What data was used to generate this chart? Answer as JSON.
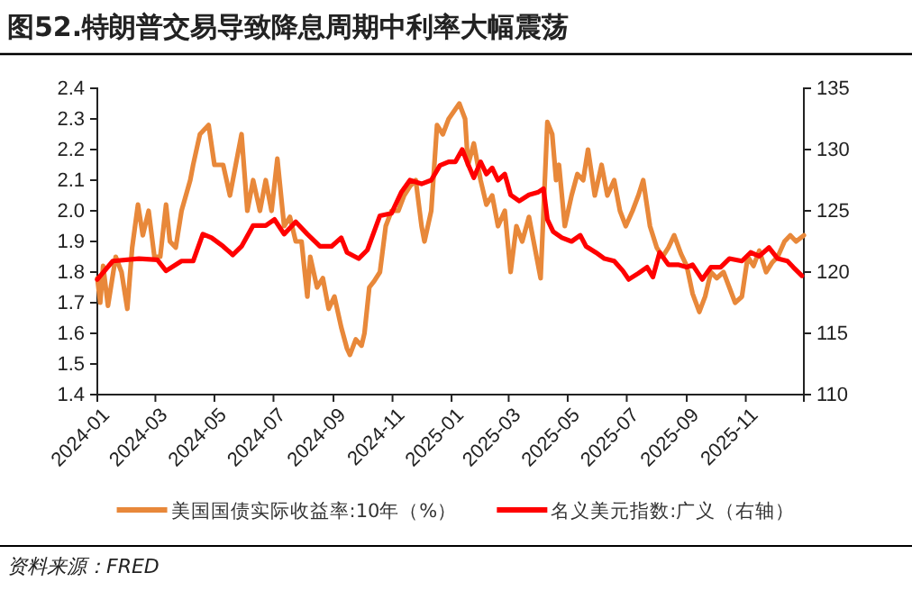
{
  "chart_data": {
    "type": "line",
    "title": "图52.特朗普交易导致降息周期中利率大幅震荡",
    "annotations": [
      "资料来源：FRED"
    ],
    "xlim": [
      "2024-01-01",
      "2025-12-31"
    ],
    "xticks": [
      "2024-01",
      "2024-03",
      "2024-05",
      "2024-07",
      "2024-09",
      "2024-11",
      "2025-01",
      "2025-03",
      "2025-05",
      "2025-07",
      "2025-09",
      "2025-11"
    ],
    "ylim": [
      1.4,
      2.4
    ],
    "yticks": [
      1.4,
      1.5,
      1.6,
      1.7,
      1.8,
      1.9,
      {
        "value": 2,
        "label": "2.0"
      },
      2.1,
      2.2,
      2.3,
      2.4
    ],
    "y2lim": [
      110,
      135
    ],
    "y2ticks": [
      110,
      115,
      120,
      125,
      130,
      135
    ],
    "grid": false,
    "legend": "bottom",
    "marker": "none",
    "line_style": "solid",
    "series": [
      {
        "name": "美国国债实际收益率:10年（%）",
        "color": "#e8883a",
        "x": [
          "2024-01-01",
          "2024-01-04",
          "2024-01-07",
          "2024-01-12",
          "2024-01-20",
          "2024-01-26",
          "2024-02-01",
          "2024-02-06",
          "2024-02-12",
          "2024-02-17",
          "2024-02-23",
          "2024-02-29",
          "2024-03-06",
          "2024-03-12",
          "2024-03-16",
          "2024-03-22",
          "2024-03-28",
          "2024-04-06",
          "2024-04-09",
          "2024-04-16",
          "2024-04-25",
          "2024-05-01",
          "2024-05-10",
          "2024-05-17",
          "2024-05-23",
          "2024-05-29",
          "2024-06-04",
          "2024-06-10",
          "2024-06-17",
          "2024-06-23",
          "2024-06-29",
          "2024-07-05",
          "2024-07-12",
          "2024-07-18",
          "2024-07-24",
          "2024-07-30",
          "2024-08-05",
          "2024-08-08",
          "2024-08-15",
          "2024-08-21",
          "2024-08-27",
          "2024-09-02",
          "2024-09-09",
          "2024-09-15",
          "2024-09-18",
          "2024-09-24",
          "2024-09-30",
          "2024-10-03",
          "2024-10-08",
          "2024-10-13",
          "2024-10-19",
          "2024-10-25",
          "2024-10-31",
          "2024-11-07",
          "2024-11-13",
          "2024-11-19",
          "2024-11-25",
          "2024-12-01",
          "2024-12-04",
          "2024-12-11",
          "2024-12-17",
          "2024-12-23",
          "2024-12-29",
          "2025-01-09",
          "2025-01-15",
          "2025-01-18",
          "2025-01-24",
          "2025-01-31",
          "2025-02-06",
          "2025-02-12",
          "2025-02-18",
          "2025-02-25",
          "2025-03-03",
          "2025-03-09",
          "2025-03-15",
          "2025-03-22",
          "2025-03-28",
          "2025-04-03",
          "2025-04-10",
          "2025-04-15",
          "2025-04-19",
          "2025-04-22",
          "2025-04-28",
          "2025-05-05",
          "2025-05-11",
          "2025-05-17",
          "2025-05-22",
          "2025-05-29",
          "2025-06-05",
          "2025-06-11",
          "2025-06-18",
          "2025-06-24",
          "2025-06-30",
          "2025-07-07",
          "2025-07-13",
          "2025-07-18",
          "2025-07-25",
          "2025-08-01",
          "2025-08-07",
          "2025-08-13",
          "2025-08-19",
          "2025-08-26",
          "2025-09-01",
          "2025-09-07",
          "2025-09-14",
          "2025-09-20",
          "2025-09-26",
          "2025-10-02",
          "2025-10-09",
          "2025-10-15",
          "2025-10-21",
          "2025-10-28",
          "2025-11-03",
          "2025-11-09",
          "2025-11-15",
          "2025-11-22",
          "2025-11-28",
          "2025-12-04",
          "2025-12-11",
          "2025-12-17",
          "2025-12-23",
          "2025-12-31"
        ],
        "values": [
          1.78,
          1.7,
          1.82,
          1.69,
          1.85,
          1.8,
          1.68,
          1.88,
          2.02,
          1.92,
          2.0,
          1.85,
          1.85,
          2.02,
          1.9,
          1.88,
          2.0,
          2.1,
          2.15,
          2.25,
          2.28,
          2.15,
          2.15,
          2.05,
          2.15,
          2.25,
          2.0,
          2.1,
          2.0,
          2.1,
          2.0,
          2.17,
          1.95,
          1.98,
          1.9,
          1.9,
          1.72,
          1.85,
          1.75,
          1.78,
          1.68,
          1.72,
          1.62,
          1.55,
          1.53,
          1.58,
          1.56,
          1.6,
          1.75,
          1.77,
          1.8,
          1.95,
          2.0,
          2.0,
          2.05,
          2.08,
          2.1,
          1.95,
          1.9,
          2.0,
          2.28,
          2.25,
          2.3,
          2.35,
          2.3,
          2.15,
          2.22,
          2.1,
          2.02,
          2.05,
          1.95,
          2.0,
          1.8,
          1.95,
          1.9,
          1.98,
          1.88,
          1.78,
          2.29,
          2.25,
          2.1,
          2.15,
          1.95,
          2.05,
          2.12,
          2.1,
          2.2,
          2.05,
          2.15,
          2.05,
          2.1,
          2.0,
          1.95,
          2.0,
          2.05,
          2.1,
          1.95,
          1.88,
          1.85,
          1.88,
          1.92,
          1.86,
          1.82,
          1.73,
          1.67,
          1.72,
          1.8,
          1.78,
          1.8,
          1.75,
          1.7,
          1.72,
          1.85,
          1.82,
          1.87,
          1.8,
          1.83,
          1.85,
          1.9,
          1.92,
          1.9,
          1.92
        ]
      },
      {
        "name": "名义美元指数:广义（右轴）",
        "color": "#ff0000",
        "axis": "y2",
        "x": [
          "2024-01-01",
          "2024-01-17",
          "2024-02-13",
          "2024-03-03",
          "2024-03-12",
          "2024-03-28",
          "2024-04-09",
          "2024-04-19",
          "2024-04-28",
          "2024-05-10",
          "2024-05-20",
          "2024-05-29",
          "2024-06-10",
          "2024-06-23",
          "2024-07-02",
          "2024-07-12",
          "2024-07-24",
          "2024-08-05",
          "2024-08-18",
          "2024-08-30",
          "2024-09-09",
          "2024-09-15",
          "2024-09-27",
          "2024-10-06",
          "2024-10-19",
          "2024-10-31",
          "2024-11-10",
          "2024-11-19",
          "2024-12-01",
          "2024-12-11",
          "2024-12-20",
          "2024-12-29",
          "2025-01-05",
          "2025-01-12",
          "2025-01-18",
          "2025-01-24",
          "2025-01-31",
          "2025-02-06",
          "2025-02-12",
          "2025-02-18",
          "2025-02-25",
          "2025-03-03",
          "2025-03-12",
          "2025-03-22",
          "2025-03-31",
          "2025-04-06",
          "2025-04-10",
          "2025-04-16",
          "2025-04-25",
          "2025-05-05",
          "2025-05-14",
          "2025-05-20",
          "2025-05-30",
          "2025-06-08",
          "2025-06-18",
          "2025-06-27",
          "2025-07-03",
          "2025-07-13",
          "2025-07-22",
          "2025-07-28",
          "2025-08-04",
          "2025-08-13",
          "2025-08-23",
          "2025-09-01",
          "2025-09-07",
          "2025-09-17",
          "2025-09-26",
          "2025-10-06",
          "2025-10-15",
          "2025-10-28",
          "2025-11-06",
          "2025-11-15",
          "2025-11-25",
          "2025-12-04",
          "2025-12-14",
          "2025-12-20",
          "2025-12-29"
        ],
        "values": [
          119.4,
          120.9,
          121.1,
          121.0,
          120.1,
          120.9,
          120.9,
          123.1,
          122.8,
          122.1,
          121.4,
          122.1,
          123.8,
          123.8,
          124.3,
          123.1,
          124.1,
          123.1,
          122.1,
          122.1,
          122.8,
          121.6,
          121.1,
          121.8,
          124.6,
          124.8,
          126.5,
          127.5,
          127.2,
          127.5,
          128.7,
          129.0,
          129.0,
          130.0,
          128.8,
          127.7,
          129.0,
          128.0,
          128.5,
          127.5,
          128.0,
          126.3,
          125.8,
          126.3,
          126.5,
          126.8,
          124.3,
          123.3,
          122.8,
          122.5,
          123.0,
          122.1,
          121.6,
          121.1,
          120.9,
          120.1,
          119.4,
          119.9,
          120.4,
          119.6,
          121.6,
          120.6,
          120.6,
          120.4,
          120.6,
          119.4,
          120.4,
          120.4,
          121.1,
          120.9,
          121.6,
          121.3,
          122.0,
          121.1,
          120.9,
          120.4,
          119.7
        ]
      }
    ]
  }
}
